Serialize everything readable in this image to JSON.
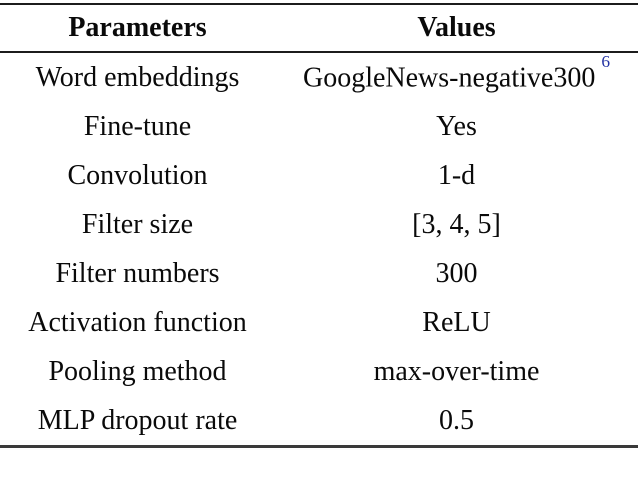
{
  "table": {
    "headers": {
      "parameters": "Parameters",
      "values": "Values"
    },
    "rows": [
      {
        "parameter": "Word embeddings",
        "value": "GoogleNews-negative300",
        "footnote": "6"
      },
      {
        "parameter": "Fine-tune",
        "value": "Yes"
      },
      {
        "parameter": "Convolution",
        "value": "1-d"
      },
      {
        "parameter": "Filter size",
        "value": "[3, 4, 5]"
      },
      {
        "parameter": "Filter numbers",
        "value": "300"
      },
      {
        "parameter": "Activation function",
        "value": "ReLU"
      },
      {
        "parameter": "Pooling method",
        "value": "max-over-time"
      },
      {
        "parameter": "MLP dropout rate",
        "value": "0.5"
      }
    ],
    "colors": {
      "text_color": "#0a0a0a",
      "rule_color": "#1c1c1c",
      "rule_bottom_color": "#3a3a3a",
      "footnote_color": "#2433a4",
      "bg_color": "#ffffff"
    }
  }
}
